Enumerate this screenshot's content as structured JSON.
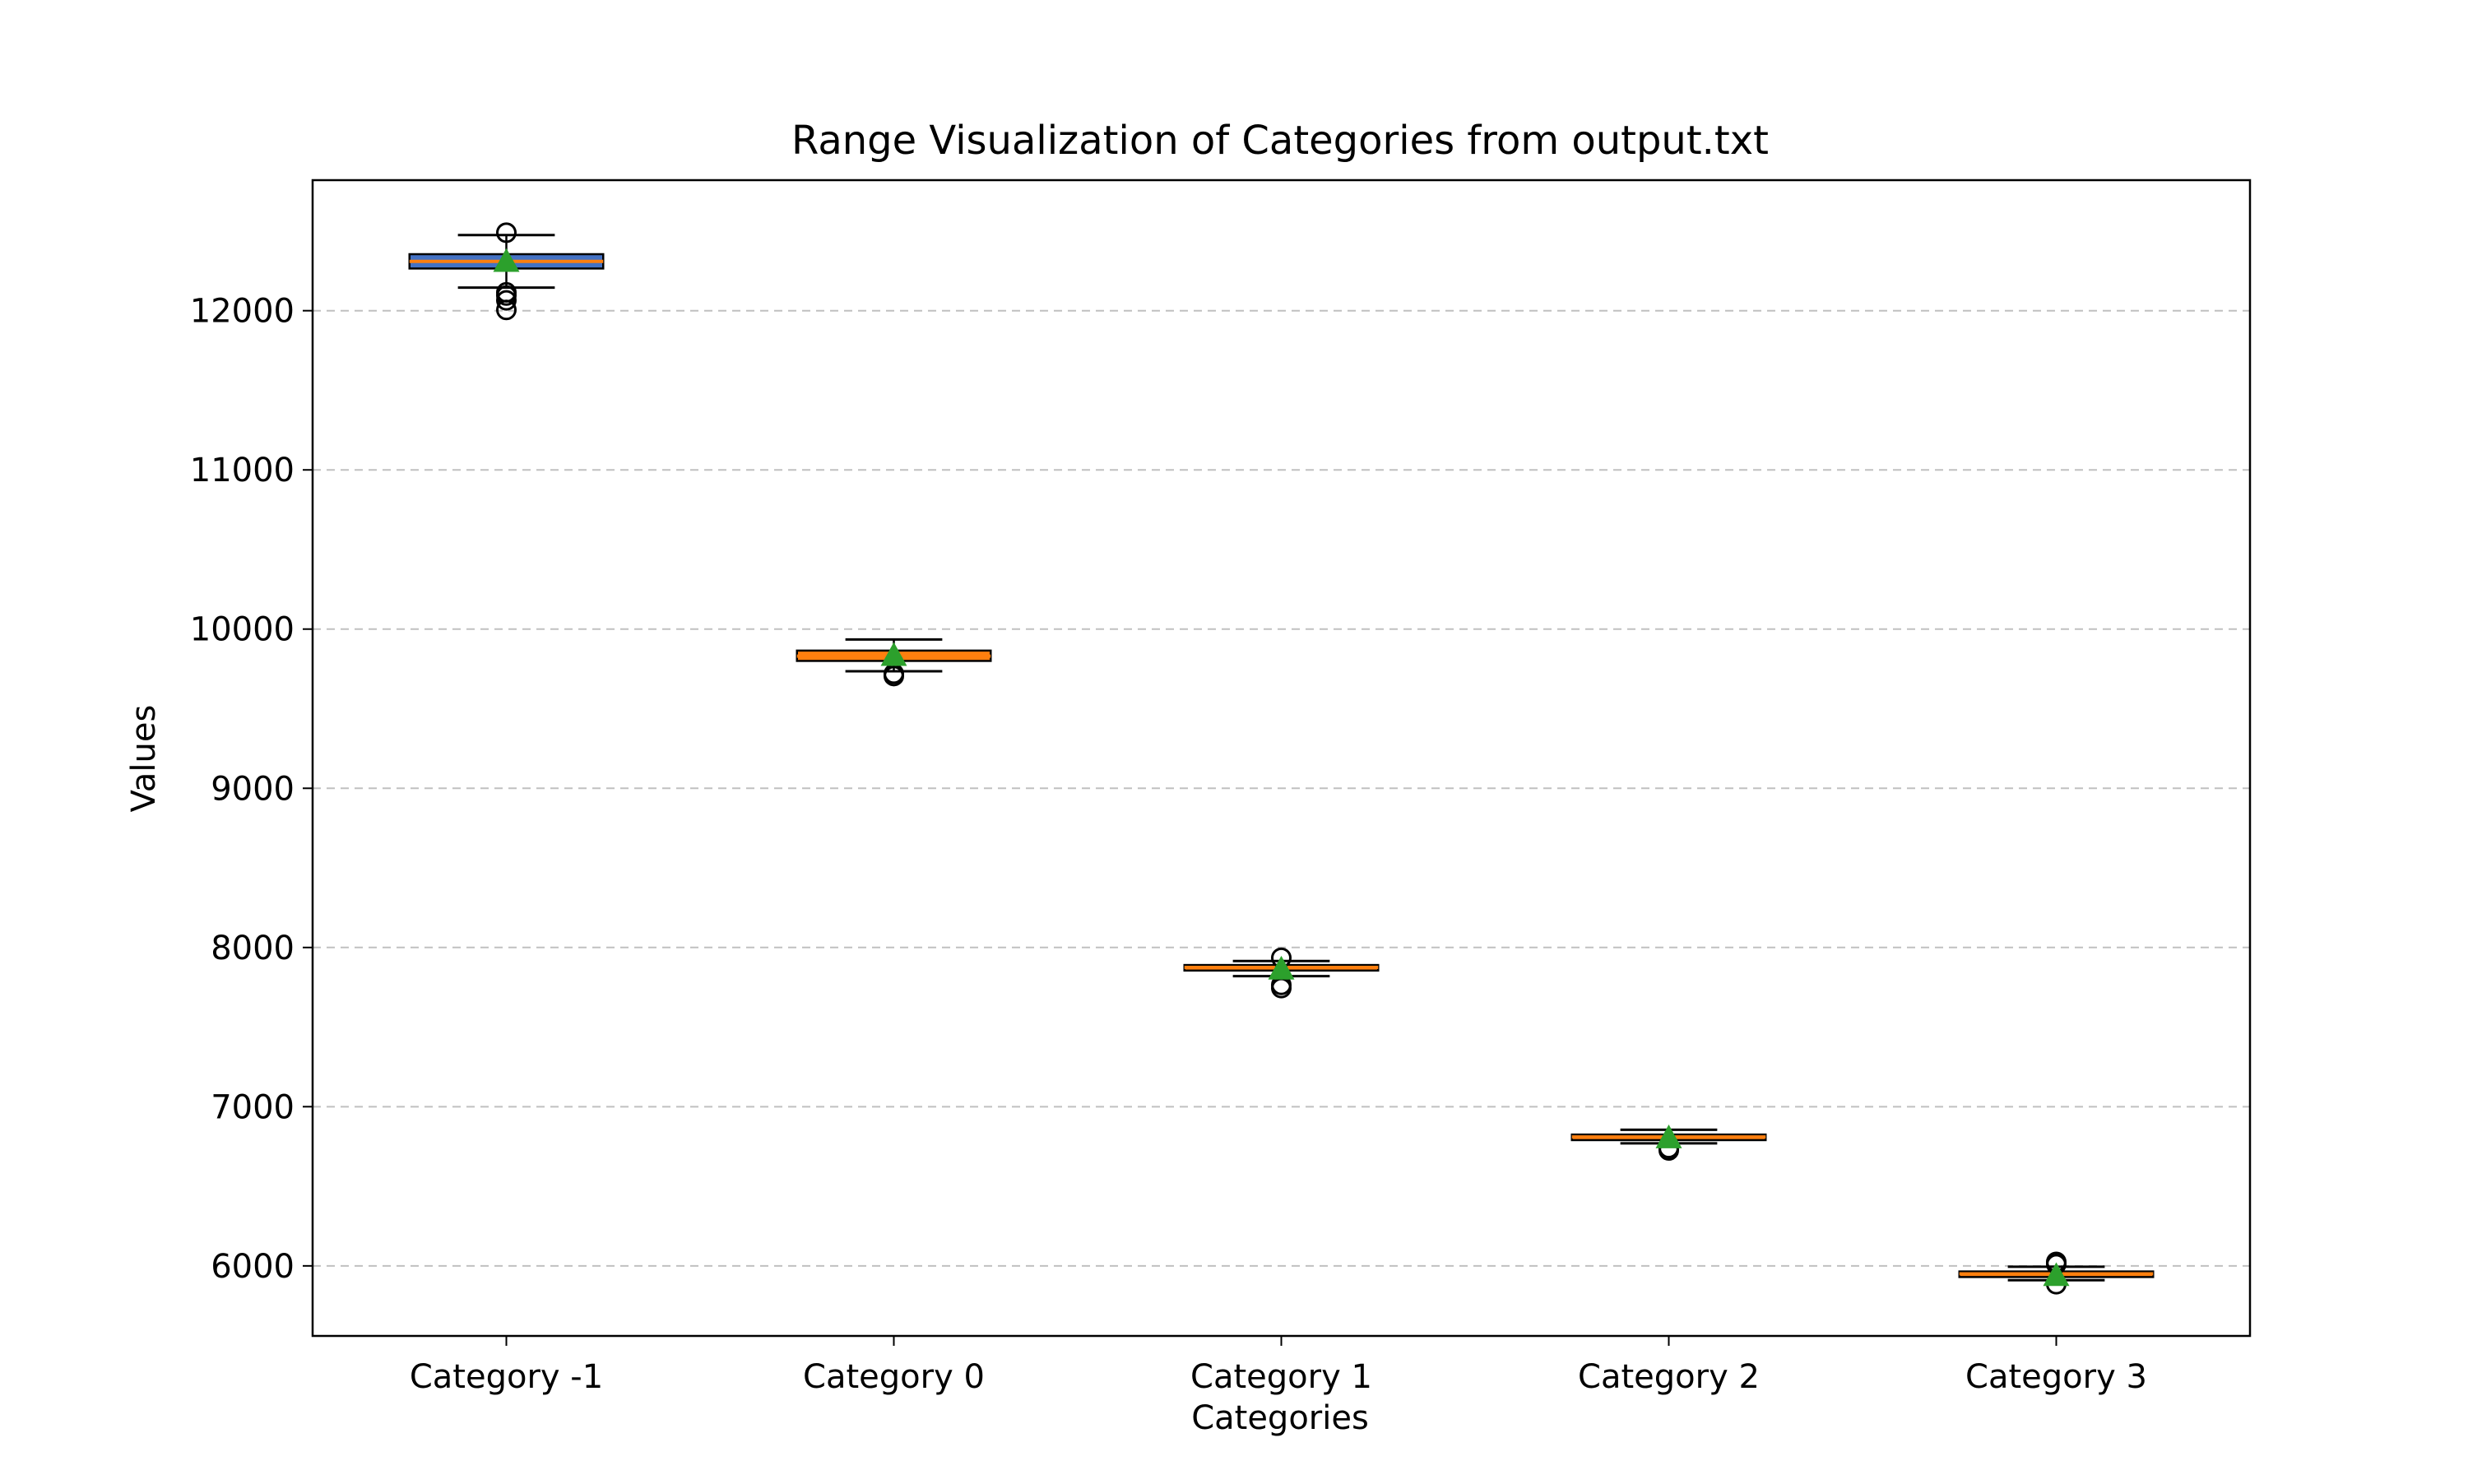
{
  "chart_data": {
    "type": "box",
    "title": "Range Visualization of Categories from output.txt",
    "xlabel": "Categories",
    "ylabel": "Values",
    "ylim": [
      5560,
      12820
    ],
    "yticks": [
      6000,
      7000,
      8000,
      9000,
      10000,
      11000,
      12000
    ],
    "grid": {
      "y": true,
      "style": "dashed"
    },
    "categories": [
      "Category -1",
      "Category 0",
      "Category 1",
      "Category 2",
      "Category 3"
    ],
    "boxes": [
      {
        "category": "Category -1",
        "whisker_low": 12145,
        "q1": 12265,
        "median": 12310,
        "q3": 12355,
        "whisker_high": 12475,
        "mean": 12310,
        "outliers": [
          12490,
          12115,
          12095,
          12065,
          12005
        ]
      },
      {
        "category": "Category 0",
        "whisker_low": 9735,
        "q1": 9800,
        "median": 9830,
        "q3": 9865,
        "whisker_high": 9935,
        "mean": 9835,
        "outliers": [
          9720,
          9705
        ]
      },
      {
        "category": "Category 1",
        "whisker_low": 7820,
        "q1": 7855,
        "median": 7875,
        "q3": 7890,
        "whisker_high": 7915,
        "mean": 7865,
        "outliers": [
          7935,
          7765,
          7745
        ]
      },
      {
        "category": "Category 2",
        "whisker_low": 6770,
        "q1": 6790,
        "median": 6810,
        "q3": 6825,
        "whisker_high": 6855,
        "mean": 6805,
        "outliers": [
          6740,
          6725
        ]
      },
      {
        "category": "Category 3",
        "whisker_low": 5910,
        "q1": 5930,
        "median": 5950,
        "q3": 5965,
        "whisker_high": 5995,
        "mean": 5940,
        "outliers": [
          6025,
          6010,
          5885
        ]
      }
    ],
    "colors": {
      "box_fill_first": "#4472c4",
      "box_fill": "#ff7f0e",
      "box_edge": "#000000",
      "median": "#ff7f0e",
      "mean_marker": "#2ca02c",
      "grid": "#c0c0c0"
    }
  }
}
